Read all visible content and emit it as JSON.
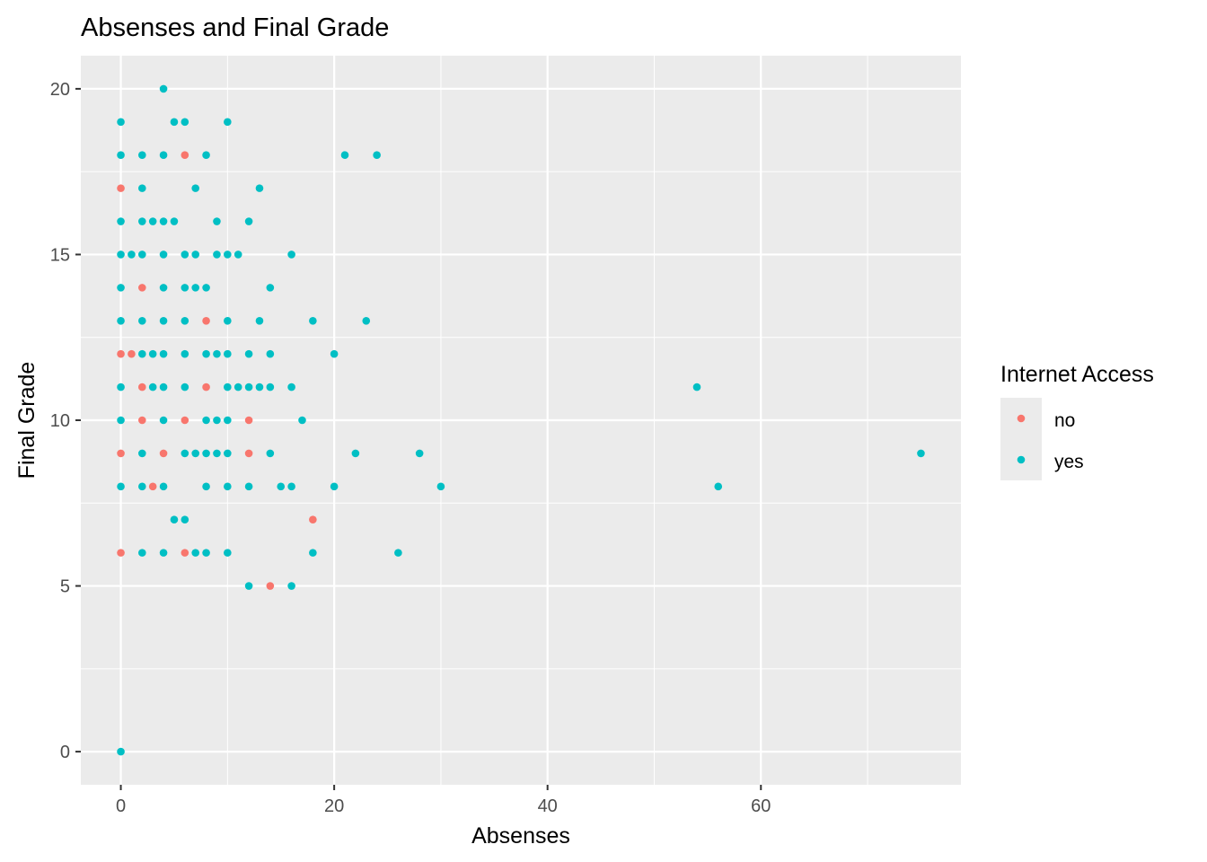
{
  "chart_data": {
    "type": "scatter",
    "title": "Absenses and Final Grade",
    "xlabel": "Absenses",
    "ylabel": "Final Grade",
    "xlim": [
      -3.75,
      78.75
    ],
    "ylim": [
      -1,
      21
    ],
    "xticks": [
      0,
      20,
      40,
      60
    ],
    "yticks": [
      0,
      5,
      10,
      15,
      20
    ],
    "xminor": [
      10,
      30,
      50,
      70
    ],
    "yminor": [
      2.5,
      7.5,
      12.5,
      17.5
    ],
    "grid": true,
    "panel_color": "#EBEBEB",
    "legend": {
      "title": "Internet Access",
      "position": "right"
    },
    "series": [
      {
        "name": "no",
        "color": "#F8766D",
        "points": [
          [
            0,
            17
          ],
          [
            0,
            12
          ],
          [
            0,
            9
          ],
          [
            0,
            6
          ],
          [
            1,
            12
          ],
          [
            2,
            14
          ],
          [
            2,
            11
          ],
          [
            2,
            10
          ],
          [
            3,
            8
          ],
          [
            4,
            9
          ],
          [
            6,
            18
          ],
          [
            6,
            10
          ],
          [
            6,
            6
          ],
          [
            8,
            13
          ],
          [
            8,
            11
          ],
          [
            12,
            10
          ],
          [
            12,
            9
          ],
          [
            14,
            5
          ],
          [
            18,
            7
          ]
        ]
      },
      {
        "name": "yes",
        "color": "#00BFC4",
        "points": [
          [
            0,
            19
          ],
          [
            0,
            18
          ],
          [
            0,
            16
          ],
          [
            0,
            15
          ],
          [
            0,
            14
          ],
          [
            0,
            13
          ],
          [
            0,
            11
          ],
          [
            0,
            10
          ],
          [
            0,
            8
          ],
          [
            0,
            0
          ],
          [
            1,
            15
          ],
          [
            2,
            18
          ],
          [
            2,
            17
          ],
          [
            2,
            16
          ],
          [
            2,
            15
          ],
          [
            2,
            13
          ],
          [
            2,
            12
          ],
          [
            2,
            9
          ],
          [
            2,
            8
          ],
          [
            2,
            6
          ],
          [
            3,
            16
          ],
          [
            3,
            12
          ],
          [
            3,
            11
          ],
          [
            4,
            20
          ],
          [
            4,
            18
          ],
          [
            4,
            16
          ],
          [
            4,
            15
          ],
          [
            4,
            14
          ],
          [
            4,
            13
          ],
          [
            4,
            12
          ],
          [
            4,
            11
          ],
          [
            4,
            10
          ],
          [
            4,
            8
          ],
          [
            4,
            6
          ],
          [
            5,
            19
          ],
          [
            5,
            16
          ],
          [
            5,
            7
          ],
          [
            6,
            19
          ],
          [
            6,
            15
          ],
          [
            6,
            14
          ],
          [
            6,
            13
          ],
          [
            6,
            12
          ],
          [
            6,
            11
          ],
          [
            6,
            9
          ],
          [
            6,
            7
          ],
          [
            7,
            17
          ],
          [
            7,
            15
          ],
          [
            7,
            14
          ],
          [
            7,
            9
          ],
          [
            7,
            6
          ],
          [
            8,
            18
          ],
          [
            8,
            14
          ],
          [
            8,
            12
          ],
          [
            8,
            10
          ],
          [
            8,
            9
          ],
          [
            8,
            8
          ],
          [
            8,
            6
          ],
          [
            9,
            16
          ],
          [
            9,
            15
          ],
          [
            9,
            12
          ],
          [
            9,
            10
          ],
          [
            9,
            9
          ],
          [
            10,
            19
          ],
          [
            10,
            15
          ],
          [
            10,
            13
          ],
          [
            10,
            12
          ],
          [
            10,
            11
          ],
          [
            10,
            10
          ],
          [
            10,
            9
          ],
          [
            10,
            8
          ],
          [
            10,
            6
          ],
          [
            11,
            15
          ],
          [
            11,
            11
          ],
          [
            12,
            16
          ],
          [
            12,
            12
          ],
          [
            12,
            11
          ],
          [
            12,
            8
          ],
          [
            12,
            5
          ],
          [
            13,
            17
          ],
          [
            13,
            13
          ],
          [
            13,
            11
          ],
          [
            14,
            14
          ],
          [
            14,
            12
          ],
          [
            14,
            11
          ],
          [
            14,
            9
          ],
          [
            15,
            8
          ],
          [
            16,
            15
          ],
          [
            16,
            11
          ],
          [
            16,
            8
          ],
          [
            16,
            5
          ],
          [
            17,
            10
          ],
          [
            18,
            13
          ],
          [
            18,
            6
          ],
          [
            20,
            12
          ],
          [
            20,
            8
          ],
          [
            21,
            18
          ],
          [
            22,
            9
          ],
          [
            23,
            13
          ],
          [
            24,
            18
          ],
          [
            26,
            6
          ],
          [
            28,
            9
          ],
          [
            30,
            8
          ],
          [
            54,
            11
          ],
          [
            56,
            8
          ],
          [
            75,
            9
          ]
        ]
      }
    ]
  }
}
